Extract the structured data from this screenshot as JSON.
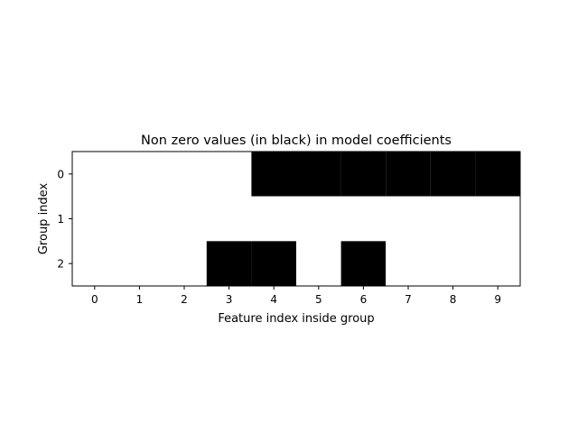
{
  "chart_data": {
    "type": "heatmap",
    "title": "Non zero values (in black) in model coefficients",
    "xlabel": "Feature index inside group",
    "ylabel": "Group index",
    "x_ticks": [
      "0",
      "1",
      "2",
      "3",
      "4",
      "5",
      "6",
      "7",
      "8",
      "9"
    ],
    "y_ticks": [
      "0",
      "1",
      "2"
    ],
    "xlim": [
      -0.5,
      9.5
    ],
    "ylim": [
      2.5,
      -0.5
    ],
    "grid": false,
    "colors": {
      "nonzero": "#000000",
      "zero": "#ffffff"
    },
    "matrix": [
      [
        0,
        0,
        0,
        0,
        1,
        1,
        1,
        1,
        1,
        1
      ],
      [
        0,
        0,
        0,
        0,
        0,
        0,
        0,
        0,
        0,
        0
      ],
      [
        0,
        0,
        0,
        1,
        1,
        0,
        1,
        0,
        0,
        0
      ]
    ]
  }
}
